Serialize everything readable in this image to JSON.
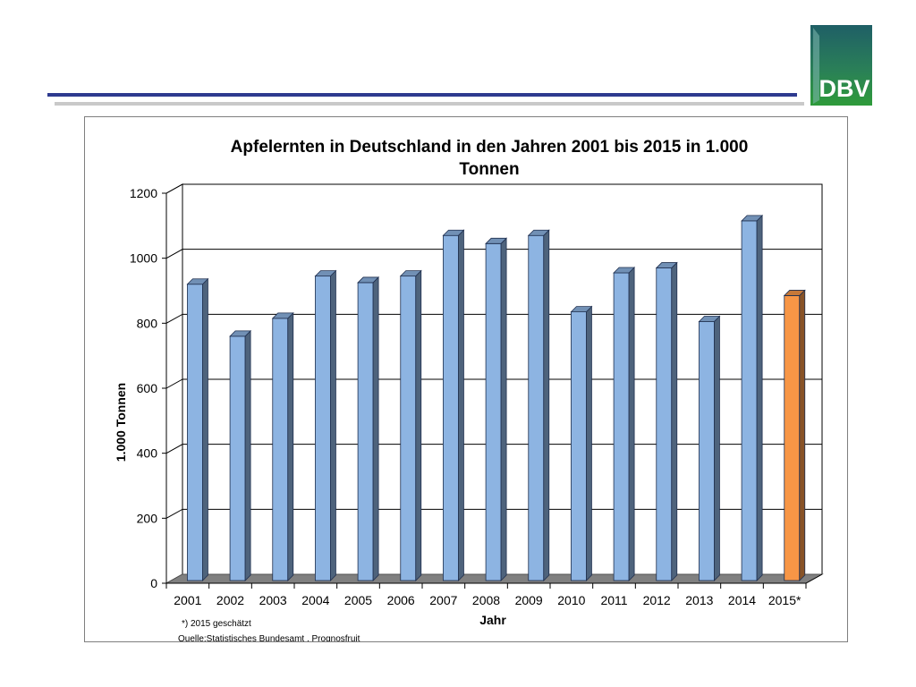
{
  "logo": {
    "text": "DBV",
    "colors": {
      "top": "#1f5f66",
      "bottom": "#2e9b3a",
      "text": "#ffffff"
    }
  },
  "chart_data": {
    "type": "bar",
    "title": "Apfelernten  in Deutschland  in den Jahren 2001 bis 2015 in 1.000 Tonnen",
    "title_lines": [
      "Apfelernten  in Deutschland  in den Jahren 2001 bis 2015 in 1.000",
      "Tonnen"
    ],
    "xlabel": "Jahr",
    "ylabel": "1.000 Tonnen",
    "categories": [
      "2001",
      "2002",
      "2003",
      "2004",
      "2005",
      "2006",
      "2007",
      "2008",
      "2009",
      "2010",
      "2011",
      "2012",
      "2013",
      "2014",
      "2015*"
    ],
    "values": [
      920,
      760,
      815,
      945,
      925,
      945,
      1070,
      1045,
      1070,
      835,
      955,
      970,
      805,
      1115,
      885
    ],
    "estimated_index": 14,
    "ylim": [
      0,
      1200
    ],
    "yticks": [
      0,
      200,
      400,
      600,
      800,
      1000,
      1200
    ],
    "grid": true,
    "colors": {
      "bar": "#8db4e2",
      "bar_estimated": "#f79646",
      "grid": "#000000",
      "floor": "#808080"
    },
    "footnotes": [
      "*) 2015 geschätzt",
      "Quelle:Statistisches  Bundesamt , Prognosfruit"
    ]
  }
}
